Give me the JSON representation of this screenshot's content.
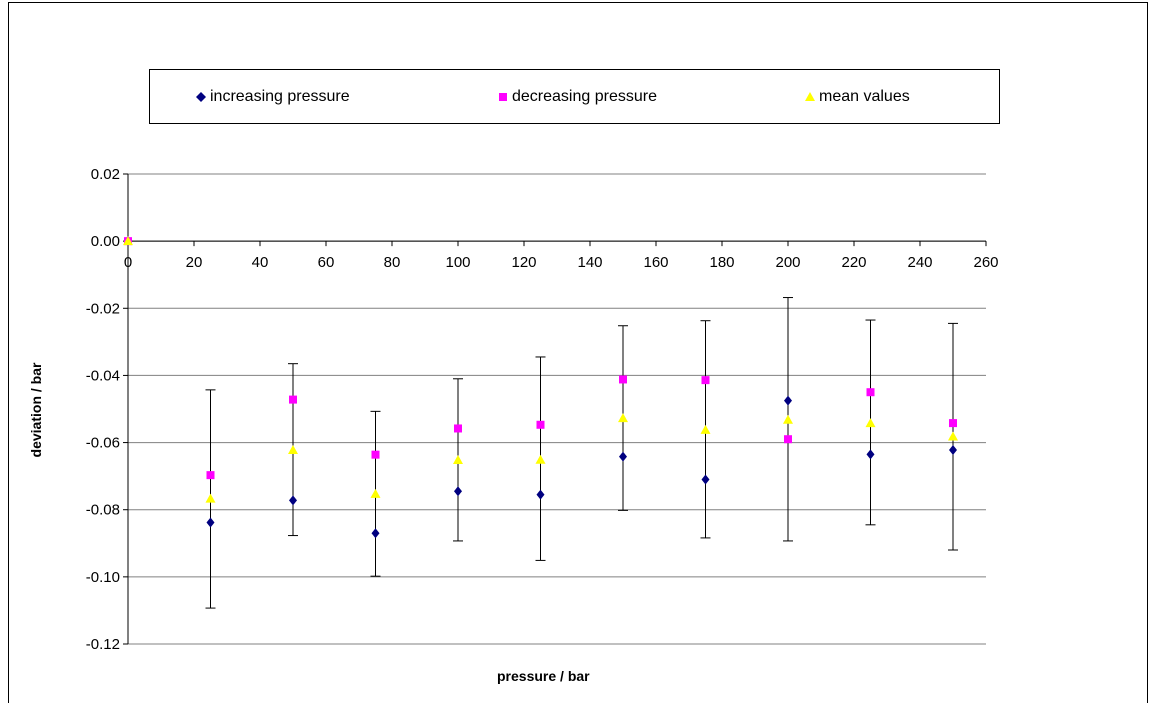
{
  "chart_data": {
    "type": "scatter",
    "xlabel": "pressure / bar",
    "ylabel": "deviation / bar",
    "xlim": [
      0,
      260
    ],
    "ylim": [
      -0.12,
      0.02
    ],
    "x_ticks": [
      0,
      20,
      40,
      60,
      80,
      100,
      120,
      140,
      160,
      180,
      200,
      220,
      240,
      260
    ],
    "y_ticks": [
      0.02,
      0.0,
      -0.02,
      -0.04,
      -0.06,
      -0.08,
      -0.1,
      -0.12
    ],
    "x_tick_labels": [
      "0",
      "20",
      "40",
      "60",
      "80",
      "100",
      "120",
      "140",
      "160",
      "180",
      "200",
      "220",
      "240",
      "260"
    ],
    "y_tick_labels": [
      "0.02",
      "0.00",
      "-0.02",
      "-0.04",
      "-0.06",
      "-0.08",
      "-0.10",
      "-0.12"
    ],
    "grid": "horizontal",
    "legend_position": "top",
    "x": [
      0,
      25,
      50,
      75,
      100,
      125,
      150,
      175,
      200,
      225,
      250
    ],
    "series": [
      {
        "name": "increasing pressure",
        "marker": "diamond",
        "color": "#000080",
        "values": [
          0,
          -0.0838,
          -0.0772,
          -0.087,
          -0.0745,
          -0.0755,
          -0.0642,
          -0.071,
          -0.0475,
          -0.0635,
          -0.0622
        ]
      },
      {
        "name": "decreasing pressure",
        "marker": "square",
        "color": "#ff00ff",
        "values": [
          0,
          -0.0697,
          -0.0472,
          -0.0636,
          -0.0558,
          -0.0547,
          -0.0412,
          -0.0414,
          -0.059,
          -0.045,
          -0.0542
        ]
      },
      {
        "name": "mean values",
        "marker": "triangle",
        "color": "#ffff00",
        "values": [
          0,
          -0.0767,
          -0.0622,
          -0.0753,
          -0.0652,
          -0.0651,
          -0.0527,
          -0.0562,
          -0.0532,
          -0.0542,
          -0.0582
        ],
        "error_low": [
          0,
          -0.1093,
          -0.0877,
          -0.0998,
          -0.0893,
          -0.0951,
          -0.0802,
          -0.0884,
          -0.0893,
          -0.0845,
          -0.092
        ],
        "error_high": [
          0,
          -0.0443,
          -0.0365,
          -0.0507,
          -0.041,
          -0.0345,
          -0.0252,
          -0.0237,
          -0.0168,
          -0.0235,
          -0.0245
        ]
      }
    ]
  }
}
